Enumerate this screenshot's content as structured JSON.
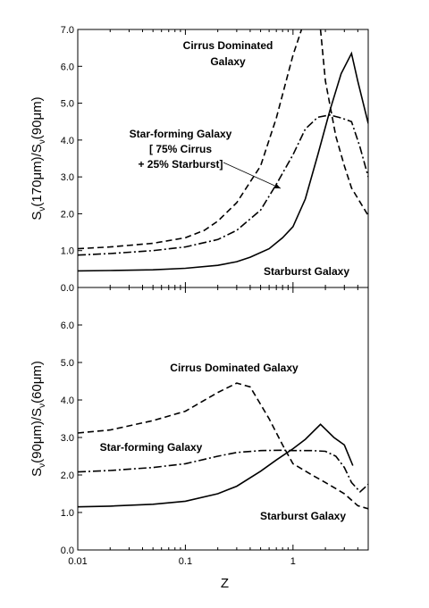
{
  "chart_data": [
    {
      "type": "line",
      "id": "top",
      "ylabel_main": "S",
      "ylabel_sub1": "ν",
      "ylabel_mid": "(170μm)/S",
      "ylabel_sub2": "ν",
      "ylabel_end": "(90μm)",
      "xscale": "log",
      "xlim": [
        0.01,
        5
      ],
      "ylim": [
        0,
        7
      ],
      "yticks": [
        "0.0",
        "1.0",
        "2.0",
        "3.0",
        "4.0",
        "5.0",
        "6.0",
        "7.0"
      ],
      "series": [
        {
          "key": "cirrus",
          "style": "dashed",
          "x": [
            0.01,
            0.02,
            0.05,
            0.1,
            0.15,
            0.2,
            0.3,
            0.5,
            0.7,
            1.0,
            1.2,
            1.5,
            1.8
          ],
          "y": [
            1.05,
            1.1,
            1.2,
            1.35,
            1.55,
            1.8,
            2.3,
            3.3,
            4.6,
            6.3,
            7.0,
            7.6,
            7.4
          ]
        },
        {
          "key": "cirrus_fall",
          "style": "dashed",
          "x": [
            1.8,
            2.0,
            2.5,
            3.0,
            3.5,
            5.0
          ],
          "y": [
            7.0,
            5.6,
            4.1,
            3.3,
            2.7,
            1.95
          ]
        },
        {
          "key": "starforming",
          "style": "dashdot",
          "x": [
            0.01,
            0.02,
            0.05,
            0.1,
            0.2,
            0.3,
            0.5,
            0.7,
            1.0,
            1.3,
            1.7,
            2.2,
            2.8,
            3.5,
            4.2,
            5.0
          ],
          "y": [
            0.88,
            0.92,
            1.0,
            1.1,
            1.3,
            1.55,
            2.1,
            2.8,
            3.6,
            4.3,
            4.62,
            4.68,
            4.6,
            4.5,
            3.8,
            3.0
          ]
        },
        {
          "key": "starburst",
          "style": "solid",
          "x": [
            0.01,
            0.02,
            0.05,
            0.1,
            0.2,
            0.3,
            0.4,
            0.6,
            0.8,
            1.0,
            1.3,
            1.7,
            2.2,
            2.8,
            3.5,
            4.0,
            5.0
          ],
          "y": [
            0.45,
            0.46,
            0.48,
            0.52,
            0.6,
            0.7,
            0.82,
            1.05,
            1.35,
            1.65,
            2.4,
            3.6,
            4.8,
            5.8,
            6.35,
            5.6,
            4.45
          ]
        }
      ],
      "annotations": [
        {
          "key": "cirrus_1",
          "text": "Cirrus Dominated"
        },
        {
          "key": "cirrus_2",
          "text": "Galaxy"
        },
        {
          "key": "sf_1",
          "text": "Star-forming Galaxy"
        },
        {
          "key": "sf_2",
          "text": "[ 75% Cirrus"
        },
        {
          "key": "sf_3",
          "text": "+ 25% Starburst]"
        },
        {
          "key": "sb",
          "text": "Starburst Galaxy"
        }
      ]
    },
    {
      "type": "line",
      "id": "bottom",
      "ylabel_main": "S",
      "ylabel_sub1": "ν",
      "ylabel_mid": "(90μm)/S",
      "ylabel_sub2": "ν",
      "ylabel_end": "(60μm)",
      "xlabel": "Z",
      "xscale": "log",
      "xlim": [
        0.01,
        5
      ],
      "ylim": [
        0,
        7
      ],
      "yticks": [
        "0.0",
        "1.0",
        "2.0",
        "3.0",
        "4.0",
        "5.0",
        "6.0"
      ],
      "xticks": [
        "0.01",
        "0.1",
        "1"
      ],
      "series": [
        {
          "key": "cirrus",
          "style": "dashed",
          "x": [
            0.01,
            0.02,
            0.05,
            0.1,
            0.2,
            0.3,
            0.4,
            0.6,
            0.8,
            1.0,
            1.5,
            2.0,
            3.0,
            4.0,
            5.0
          ],
          "y": [
            3.12,
            3.2,
            3.45,
            3.7,
            4.2,
            4.45,
            4.35,
            3.5,
            2.8,
            2.3,
            2.0,
            1.8,
            1.5,
            1.18,
            1.1
          ]
        },
        {
          "key": "starforming",
          "style": "dashdot",
          "x": [
            0.01,
            0.02,
            0.05,
            0.1,
            0.2,
            0.3,
            0.5,
            0.8,
            1.0,
            1.5,
            2.0,
            2.5,
            3.0,
            3.5,
            4.2,
            5.0
          ],
          "y": [
            2.08,
            2.12,
            2.2,
            2.3,
            2.5,
            2.6,
            2.65,
            2.66,
            2.65,
            2.65,
            2.63,
            2.5,
            2.2,
            1.8,
            1.55,
            1.75
          ]
        },
        {
          "key": "starburst",
          "style": "solid",
          "x": [
            0.01,
            0.02,
            0.05,
            0.1,
            0.2,
            0.3,
            0.5,
            0.7,
            1.0,
            1.3,
            1.8,
            2.4,
            3.0,
            3.6
          ],
          "y": [
            1.15,
            1.17,
            1.22,
            1.3,
            1.5,
            1.7,
            2.1,
            2.4,
            2.7,
            2.95,
            3.35,
            3.0,
            2.8,
            2.25
          ]
        }
      ],
      "annotations": [
        {
          "key": "cirrus",
          "text": "Cirrus Dominated Galaxy"
        },
        {
          "key": "sf",
          "text": "Star-forming Galaxy"
        },
        {
          "key": "sb",
          "text": "Starburst Galaxy"
        }
      ]
    }
  ]
}
